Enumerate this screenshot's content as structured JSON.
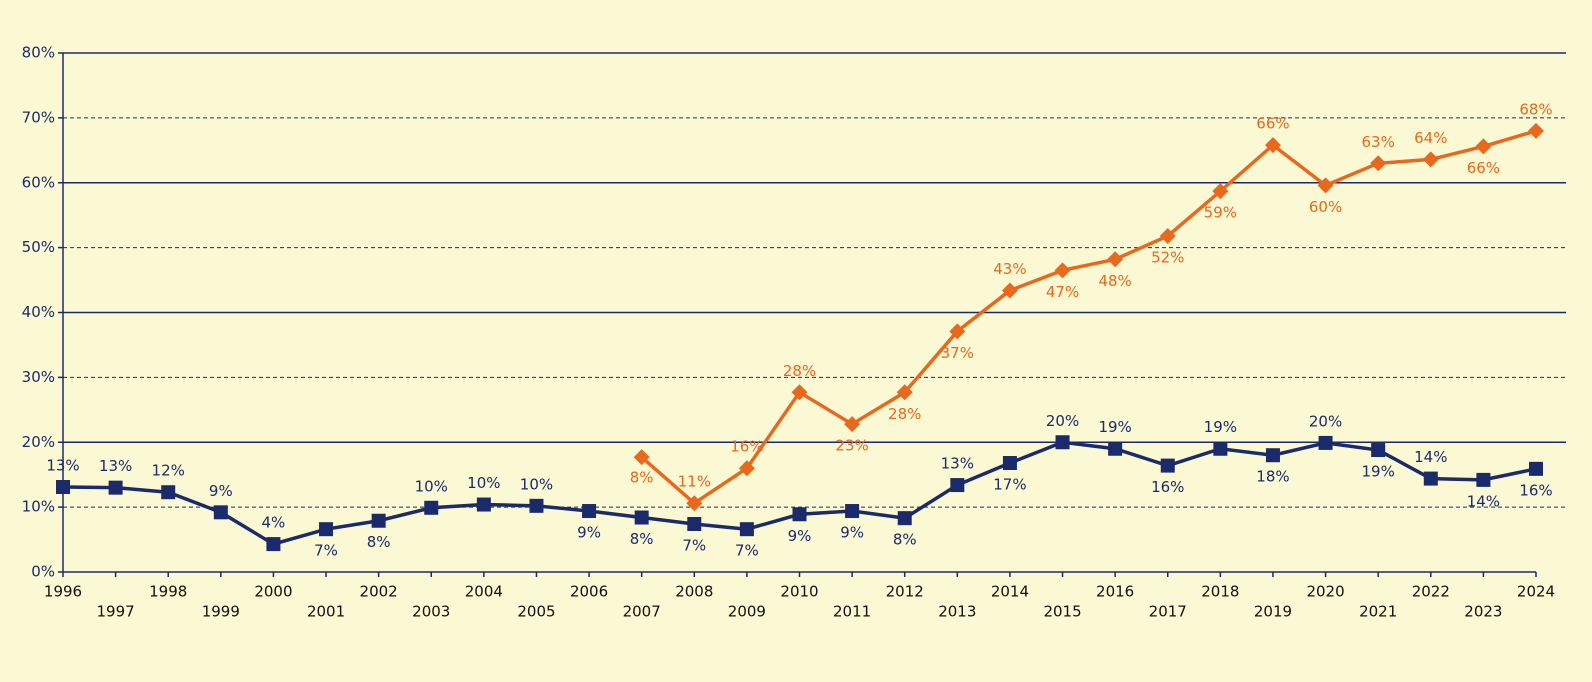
{
  "chart_data": {
    "type": "line",
    "categories": [
      "1996",
      "1997",
      "1998",
      "1999",
      "2000",
      "2001",
      "2002",
      "2003",
      "2004",
      "2005",
      "2006",
      "2007",
      "2008",
      "2009",
      "2010",
      "2011",
      "2012",
      "2013",
      "2014",
      "2015",
      "2016",
      "2017",
      "2018",
      "2019",
      "2020",
      "2021",
      "2022",
      "2023",
      "2024"
    ],
    "series": [
      {
        "color": "#1b2a6b",
        "values": [
          13.1,
          13,
          12.3,
          9.2,
          4.3,
          6.6,
          7.9,
          9.9,
          10.4,
          10.2,
          9.4,
          8.4,
          7.4,
          6.6,
          8.9,
          9.4,
          8.3,
          13.4,
          16.8,
          20,
          19,
          16.4,
          19,
          18,
          19.9,
          18.8,
          14.4,
          14.2,
          15.9
        ],
        "value_labels": [
          "13%",
          "13%",
          "12%",
          "9%",
          "4%",
          "7%",
          "8%",
          "10%",
          "10%",
          "10%",
          "9%",
          "8%",
          "7%",
          "7%",
          "9%",
          "9%",
          "8%",
          "13%",
          "17%",
          "20%",
          "19%",
          "16%",
          "19%",
          "18%",
          "20%",
          "19%",
          "14%",
          "14%",
          "16%"
        ]
      },
      {
        "color": "#e8681e",
        "values": [
          null,
          null,
          null,
          null,
          null,
          null,
          null,
          null,
          null,
          null,
          null,
          17.7,
          10.6,
          16,
          27.7,
          22.8,
          27.7,
          37.1,
          43.4,
          46.5,
          48.2,
          51.8,
          58.7,
          65.8,
          59.6,
          63,
          63.6,
          65.6,
          68
        ],
        "value_labels": [
          null,
          null,
          null,
          null,
          null,
          null,
          null,
          null,
          null,
          null,
          null,
          null,
          "11%",
          "16%",
          "28%",
          "23%",
          "28%",
          "37%",
          "43%",
          "47%",
          "48%",
          "52%",
          "59%",
          "66%",
          "60%",
          "63%",
          "64%",
          "66%",
          "68%"
        ]
      }
    ],
    "annotations": [
      {
        "text": "8%",
        "x": "2007"
      }
    ],
    "ylim": [
      0,
      80
    ],
    "yticks": [
      {
        "value": 0,
        "label": "0%"
      },
      {
        "value": 10,
        "label": "10%"
      },
      {
        "value": 20,
        "label": "20%"
      },
      {
        "value": 30,
        "label": "30%"
      },
      {
        "value": 40,
        "label": "40%"
      },
      {
        "value": 50,
        "label": "50%"
      },
      {
        "value": 60,
        "label": "60%"
      },
      {
        "value": 70,
        "label": "70%"
      },
      {
        "value": 80,
        "label": "80%"
      }
    ],
    "grid": true
  }
}
